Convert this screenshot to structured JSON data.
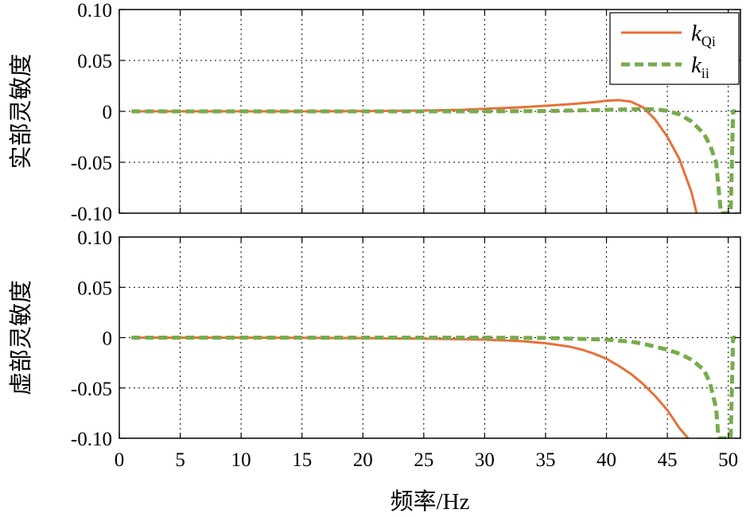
{
  "chart_data": [
    {
      "type": "line",
      "ylabel": "实部灵敏度",
      "xlim": [
        0,
        51
      ],
      "ylim": [
        -0.1,
        0.1
      ],
      "xticks": [
        0,
        5,
        10,
        15,
        20,
        25,
        30,
        35,
        40,
        45,
        50
      ],
      "yticks": [
        0.1,
        0.05,
        0,
        -0.05,
        -0.1
      ],
      "ytick_labels": [
        "0.10",
        "0.05",
        "0",
        "-0.05",
        "-0.10"
      ],
      "grid": true,
      "legend_position": "top-right",
      "series": [
        {
          "name": "k_Qi",
          "color": "#e8703a",
          "style": "solid",
          "x": [
            1,
            5,
            10,
            15,
            20,
            25,
            28,
            30,
            33,
            35,
            37,
            39,
            40,
            41,
            42,
            43,
            44,
            45,
            46,
            47,
            47.4
          ],
          "y": [
            0,
            0,
            0,
            0,
            0.0002,
            0.0008,
            0.0015,
            0.0025,
            0.004,
            0.0055,
            0.007,
            0.009,
            0.0105,
            0.011,
            0.0095,
            0.004,
            -0.008,
            -0.025,
            -0.047,
            -0.08,
            -0.1
          ]
        },
        {
          "name": "k_ii",
          "color": "#77ab4b",
          "style": "dashed",
          "x": [
            1,
            10,
            20,
            30,
            35,
            40,
            42,
            43,
            44,
            45,
            46,
            47,
            48,
            48.5,
            49,
            49.4,
            50.2,
            50.4,
            50.6
          ],
          "y": [
            0,
            0,
            0,
            0,
            0.0003,
            0.0015,
            0.002,
            0.0022,
            0.002,
            0.0005,
            -0.003,
            -0.01,
            -0.022,
            -0.033,
            -0.05,
            -0.1,
            -0.1,
            0,
            0
          ]
        }
      ]
    },
    {
      "type": "line",
      "ylabel": "虚部灵敏度",
      "xlabel": "频率/Hz",
      "xlim": [
        0,
        51
      ],
      "ylim": [
        -0.1,
        0.1
      ],
      "xticks": [
        0,
        5,
        10,
        15,
        20,
        25,
        30,
        35,
        40,
        45,
        50
      ],
      "yticks": [
        0.1,
        0.05,
        0,
        -0.05,
        -0.1
      ],
      "ytick_labels": [
        "0.10",
        "0.05",
        "0",
        "-0.05",
        "-0.10"
      ],
      "grid": true,
      "series": [
        {
          "name": "k_Qi",
          "color": "#e8703a",
          "style": "solid",
          "x": [
            1,
            10,
            20,
            25,
            30,
            33,
            35,
            37,
            38,
            39,
            40,
            41,
            42,
            43,
            44,
            45,
            46,
            46.7
          ],
          "y": [
            0,
            0,
            -0.0005,
            -0.001,
            -0.002,
            -0.0035,
            -0.0055,
            -0.009,
            -0.012,
            -0.016,
            -0.021,
            -0.028,
            -0.036,
            -0.046,
            -0.058,
            -0.072,
            -0.09,
            -0.1
          ]
        },
        {
          "name": "k_ii",
          "color": "#77ab4b",
          "style": "dashed",
          "x": [
            1,
            10,
            20,
            30,
            35,
            40,
            42,
            43,
            44,
            45,
            46,
            47,
            48,
            48.5,
            49,
            49.2,
            50.2,
            50.4,
            50.6
          ],
          "y": [
            0,
            0,
            0,
            0,
            -0.0003,
            -0.002,
            -0.004,
            -0.006,
            -0.009,
            -0.012,
            -0.016,
            -0.022,
            -0.032,
            -0.045,
            -0.07,
            -0.1,
            -0.1,
            0,
            0
          ]
        }
      ]
    }
  ],
  "legend": {
    "entries": [
      {
        "letter": "k",
        "sub": "Qi",
        "color": "#e8703a",
        "style": "solid"
      },
      {
        "letter": "k",
        "sub": "ii",
        "color": "#77ab4b",
        "style": "dashed"
      }
    ]
  }
}
